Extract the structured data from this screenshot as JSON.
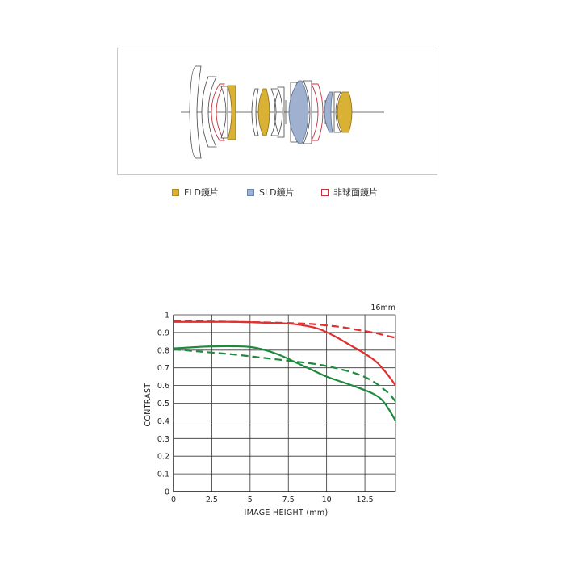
{
  "lens_diagram": {
    "legend": [
      {
        "label": "FLD鏡片",
        "color": "#d9b235",
        "border": "#b08a1a",
        "kind": "fld"
      },
      {
        "label": "SLD鏡片",
        "color": "#9fb1cf",
        "border": "#6e84a8",
        "kind": "sld"
      },
      {
        "label": "非球面鏡片",
        "color": "#ffffff",
        "border": "#c8323c",
        "kind": "aspherical"
      }
    ]
  },
  "chart_data": {
    "type": "line",
    "title": "16mm",
    "xlabel": "IMAGE HEIGHT (mm)",
    "ylabel": "CONTRAST",
    "xlim": [
      0,
      14.5
    ],
    "ylim": [
      0,
      1
    ],
    "xticks": [
      "0",
      "2.5",
      "5",
      "7.5",
      "10",
      "12.5"
    ],
    "xtick_values": [
      0,
      2.5,
      5,
      7.5,
      10,
      12.5
    ],
    "yticks": [
      "0",
      "0.1",
      "0.2",
      "0.3",
      "0.4",
      "0.5",
      "0.6",
      "0.7",
      "0.8",
      "0.9",
      "1"
    ],
    "ytick_values": [
      0,
      0.1,
      0.2,
      0.3,
      0.4,
      0.5,
      0.6,
      0.7,
      0.8,
      0.9,
      1
    ],
    "grid": true,
    "series": [
      {
        "color": "#e03030",
        "style": "solid",
        "x": [
          0,
          2,
          4,
          6,
          7.5,
          8.5,
          9.5,
          10.5,
          11.5,
          12.5,
          13.3,
          14,
          14.5
        ],
        "y": [
          0.96,
          0.96,
          0.96,
          0.955,
          0.95,
          0.94,
          0.92,
          0.88,
          0.83,
          0.78,
          0.73,
          0.66,
          0.6
        ]
      },
      {
        "color": "#e03030",
        "style": "dashed",
        "x": [
          0,
          2,
          4,
          6,
          8,
          9,
          10,
          11,
          12,
          13,
          14,
          14.5
        ],
        "y": [
          0.965,
          0.963,
          0.96,
          0.957,
          0.952,
          0.948,
          0.94,
          0.93,
          0.915,
          0.9,
          0.88,
          0.87
        ]
      },
      {
        "color": "#1e8a3e",
        "style": "solid",
        "x": [
          0,
          1,
          2,
          3,
          4,
          5,
          6,
          7,
          8,
          9,
          10,
          11,
          12,
          13,
          13.6,
          14.1,
          14.5
        ],
        "y": [
          0.81,
          0.815,
          0.82,
          0.822,
          0.822,
          0.818,
          0.8,
          0.77,
          0.73,
          0.69,
          0.65,
          0.62,
          0.59,
          0.555,
          0.52,
          0.46,
          0.4
        ]
      },
      {
        "color": "#1e8a3e",
        "style": "dashed",
        "x": [
          0,
          2,
          4,
          6,
          8,
          9,
          10,
          11,
          12,
          13,
          14,
          14.5
        ],
        "y": [
          0.805,
          0.79,
          0.775,
          0.755,
          0.735,
          0.725,
          0.71,
          0.69,
          0.665,
          0.625,
          0.56,
          0.51
        ]
      }
    ]
  }
}
